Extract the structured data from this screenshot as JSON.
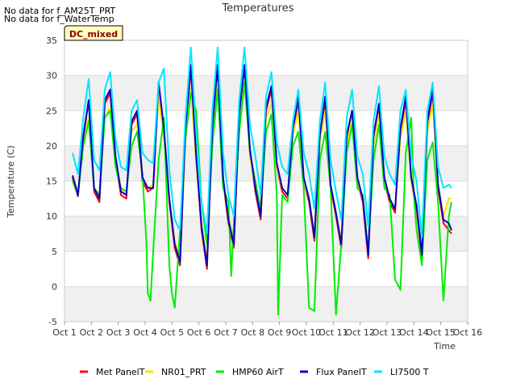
{
  "notes": [
    "No data for f_AM25T_PRT",
    "No data for f_WaterTemp"
  ],
  "badge": "DC_mixed",
  "chart_data": {
    "type": "line",
    "title": "Temperatures",
    "xlabel": "Time",
    "ylabel": "Temperature (C)",
    "ylim": [
      -5,
      35
    ],
    "xlim": [
      1,
      16
    ],
    "yticks": [
      "-5",
      "0",
      "5",
      "10",
      "15",
      "20",
      "25",
      "30",
      "35"
    ],
    "xticks": [
      "Oct 1",
      "Oct 2",
      "Oct 3",
      "Oct 4",
      "Oct 5",
      "Oct 6",
      "Oct 7",
      "Oct 8",
      "Oct 9",
      "Oct 10",
      "Oct 11",
      "Oct 12",
      "Oct 13",
      "Oct 14",
      "Oct 15",
      "Oct 16"
    ],
    "grid": true,
    "legend_position": "bottom",
    "series": [
      {
        "name": "Met PanelT",
        "color": "#ff0000",
        "x": [
          1.3,
          1.5,
          1.7,
          1.9,
          2.1,
          2.3,
          2.5,
          2.7,
          2.9,
          3.1,
          3.3,
          3.5,
          3.7,
          3.9,
          4.1,
          4.3,
          4.5,
          4.7,
          4.9,
          5.1,
          5.3,
          5.5,
          5.7,
          5.9,
          6.1,
          6.3,
          6.5,
          6.7,
          6.9,
          7.1,
          7.3,
          7.5,
          7.7,
          7.9,
          8.1,
          8.3,
          8.5,
          8.7,
          8.9,
          9.1,
          9.3,
          9.5,
          9.7,
          9.9,
          10.1,
          10.3,
          10.5,
          10.7,
          10.9,
          11.1,
          11.3,
          11.5,
          11.7,
          11.9,
          12.1,
          12.3,
          12.5,
          12.7,
          12.9,
          13.1,
          13.3,
          13.5,
          13.7,
          13.9,
          14.1,
          14.3,
          14.5,
          14.7,
          14.9,
          15.1,
          15.3,
          15.4
        ],
        "y": [
          15.5,
          12.8,
          21,
          26.5,
          13.5,
          12,
          26,
          27.5,
          18,
          13,
          12.5,
          23,
          24.5,
          15,
          13.5,
          14,
          29,
          22,
          12,
          5.5,
          3,
          22,
          31,
          18,
          8,
          2.5,
          22,
          31,
          15,
          9,
          5.5,
          24,
          31,
          19,
          13.5,
          9.5,
          25,
          28,
          17,
          13.5,
          12.5,
          22,
          26.5,
          15,
          12,
          6.5,
          21,
          26.5,
          14,
          10,
          5.5,
          21,
          25,
          15,
          12,
          4,
          21,
          25.5,
          15,
          12,
          10.5,
          22,
          26.5,
          15,
          11,
          4,
          23,
          27.5,
          14,
          9,
          8,
          7.5
        ]
      },
      {
        "name": "NR01_PRT",
        "color": "#ffdd00",
        "x": [
          1.3,
          1.5,
          1.7,
          1.9,
          2.1,
          2.3,
          2.5,
          2.7,
          2.9,
          3.1,
          3.3,
          3.5,
          3.7,
          3.9,
          4.1,
          4.3,
          4.5,
          4.7,
          4.9,
          5.1,
          5.3,
          5.5,
          5.7,
          5.9,
          6.1,
          6.3,
          6.5,
          6.7,
          6.9,
          7.1,
          7.3,
          7.5,
          7.7,
          7.9,
          8.1,
          8.3,
          8.5,
          8.7,
          8.9,
          9.1,
          9.3,
          9.5,
          9.7,
          9.9,
          10.1,
          10.3,
          10.5,
          10.7,
          10.9,
          11.1,
          11.3,
          11.5,
          11.7,
          11.9,
          12.1,
          12.3,
          12.5,
          12.7,
          12.9,
          13.1,
          13.3,
          13.5,
          13.7,
          13.9,
          14.1,
          14.3,
          14.5,
          14.7,
          14.9,
          15.1,
          15.3,
          15.4
        ],
        "y": [
          15.8,
          13.5,
          20,
          24,
          14,
          13,
          24,
          25.5,
          18,
          14,
          13,
          22,
          23,
          15.5,
          14,
          14.5,
          27,
          21,
          12.5,
          6.5,
          4,
          21,
          28,
          17.5,
          9,
          3.5,
          21,
          29,
          15,
          10,
          6.5,
          23,
          29.5,
          18.5,
          14,
          10.5,
          24,
          26,
          17,
          14,
          13,
          21.5,
          25,
          15,
          12.5,
          7.5,
          20.5,
          25,
          14.5,
          10.5,
          6.5,
          20,
          24,
          15,
          12.5,
          5,
          20,
          24.5,
          15,
          12.5,
          11,
          21,
          25,
          15,
          11.5,
          5,
          22,
          26,
          14.5,
          10,
          12.5,
          12.5
        ]
      },
      {
        "name": "HMP60 AirT",
        "color": "#00ee00",
        "x": [
          1.3,
          1.5,
          1.7,
          1.9,
          2.1,
          2.3,
          2.5,
          2.7,
          2.9,
          3.1,
          3.3,
          3.5,
          3.7,
          3.9,
          4.05,
          4.1,
          4.2,
          4.3,
          4.5,
          4.7,
          4.9,
          5.0,
          5.1,
          5.3,
          5.5,
          5.7,
          5.9,
          6.1,
          6.3,
          6.5,
          6.7,
          6.9,
          7.1,
          7.2,
          7.3,
          7.5,
          7.7,
          7.9,
          8.1,
          8.3,
          8.5,
          8.7,
          8.9,
          8.95,
          9.1,
          9.3,
          9.5,
          9.7,
          9.9,
          10.1,
          10.3,
          10.5,
          10.7,
          10.9,
          11.1,
          11.3,
          11.5,
          11.7,
          11.9,
          12.1,
          12.3,
          12.5,
          12.7,
          12.9,
          13.1,
          13.3,
          13.5,
          13.7,
          13.9,
          14.0,
          14.1,
          14.3,
          14.5,
          14.7,
          14.9,
          15.1,
          15.3,
          15.4
        ],
        "y": [
          15,
          13,
          20,
          23.5,
          14,
          13,
          24,
          25,
          17,
          14,
          13.5,
          20,
          22,
          16,
          6,
          -1,
          -2,
          5,
          18,
          24,
          3,
          -1,
          -3,
          8,
          21,
          27.5,
          25,
          12,
          6,
          20,
          28,
          14,
          12,
          1.5,
          9,
          22,
          29,
          19,
          15,
          11,
          22,
          24.5,
          13,
          -4,
          13,
          12,
          20,
          22,
          14,
          -3,
          -3.5,
          18,
          22,
          14,
          -4,
          6,
          19,
          23,
          14,
          13,
          5,
          18,
          23,
          14,
          13,
          1,
          -0.5,
          19,
          24,
          13,
          8,
          3,
          18,
          20.5,
          12,
          -2,
          10,
          12
        ]
      },
      {
        "name": "Flux PanelT",
        "color": "#0000cc",
        "x": [
          1.3,
          1.5,
          1.7,
          1.9,
          2.1,
          2.3,
          2.5,
          2.7,
          2.9,
          3.1,
          3.3,
          3.5,
          3.7,
          3.9,
          4.1,
          4.3,
          4.5,
          4.7,
          4.9,
          5.1,
          5.3,
          5.5,
          5.7,
          5.9,
          6.1,
          6.3,
          6.5,
          6.7,
          6.9,
          7.1,
          7.3,
          7.5,
          7.7,
          7.9,
          8.1,
          8.3,
          8.5,
          8.7,
          8.9,
          9.1,
          9.3,
          9.5,
          9.7,
          9.9,
          10.1,
          10.3,
          10.5,
          10.7,
          10.9,
          11.1,
          11.3,
          11.5,
          11.7,
          11.9,
          12.1,
          12.3,
          12.5,
          12.7,
          12.9,
          13.1,
          13.3,
          13.5,
          13.7,
          13.9,
          14.1,
          14.3,
          14.5,
          14.7,
          14.9,
          15.1,
          15.3,
          15.4
        ],
        "y": [
          15.8,
          13,
          21.5,
          26.5,
          14,
          12.5,
          26.5,
          28,
          18.5,
          13.5,
          13,
          23.5,
          25,
          15.5,
          14,
          14,
          29,
          22.5,
          12.5,
          6,
          3.5,
          22.5,
          31.5,
          18.5,
          8.5,
          3,
          22.5,
          31.5,
          15.5,
          9.5,
          6,
          24.5,
          31.5,
          19.5,
          14,
          10,
          25.5,
          28.5,
          17.5,
          14,
          13,
          22.5,
          27,
          15.5,
          12.5,
          7,
          21.5,
          27,
          14.5,
          10.5,
          6,
          21.5,
          25,
          15.5,
          12.5,
          4.5,
          21.5,
          26,
          15.5,
          12.5,
          11,
          22.5,
          27,
          15.5,
          11.5,
          4.5,
          23.5,
          28,
          14.5,
          9.5,
          9,
          8
        ]
      },
      {
        "name": "LI7500 T",
        "color": "#00e5ff",
        "x": [
          1.3,
          1.5,
          1.7,
          1.9,
          2.1,
          2.3,
          2.5,
          2.7,
          2.9,
          3.1,
          3.3,
          3.5,
          3.7,
          3.9,
          4.1,
          4.3,
          4.5,
          4.7,
          4.9,
          5.1,
          5.3,
          5.5,
          5.7,
          5.9,
          6.1,
          6.3,
          6.5,
          6.7,
          6.9,
          7.1,
          7.3,
          7.5,
          7.7,
          7.9,
          8.1,
          8.3,
          8.5,
          8.7,
          8.9,
          9.1,
          9.3,
          9.5,
          9.7,
          9.9,
          10.1,
          10.3,
          10.5,
          10.7,
          10.9,
          11.1,
          11.3,
          11.5,
          11.7,
          11.9,
          12.1,
          12.3,
          12.5,
          12.7,
          12.9,
          13.1,
          13.3,
          13.5,
          13.7,
          13.9,
          14.1,
          14.3,
          14.5,
          14.7,
          14.9,
          15.1,
          15.3,
          15.4
        ],
        "y": [
          19,
          16,
          24,
          29.5,
          18,
          16.5,
          28,
          30.5,
          21,
          17,
          16.5,
          25,
          26.5,
          19,
          18,
          17.5,
          29,
          31,
          16.5,
          9.5,
          8,
          24,
          34,
          22,
          12,
          7.5,
          25,
          34,
          19,
          13,
          10,
          26.5,
          34,
          23,
          18.5,
          13,
          27,
          30.5,
          20.5,
          17,
          16,
          23.5,
          28,
          19,
          16,
          11,
          23.5,
          29,
          18,
          13.5,
          9.5,
          24,
          28,
          18.5,
          16,
          8.5,
          23.5,
          28.5,
          18.5,
          16,
          14.5,
          25,
          28,
          18.5,
          15,
          7,
          25,
          29,
          17,
          14,
          14.5,
          14
        ]
      }
    ],
    "legend_entries": [
      "Met PanelT",
      "NR01_PRT",
      "HMP60 AirT",
      "Flux PanelT",
      "LI7500 T"
    ]
  }
}
